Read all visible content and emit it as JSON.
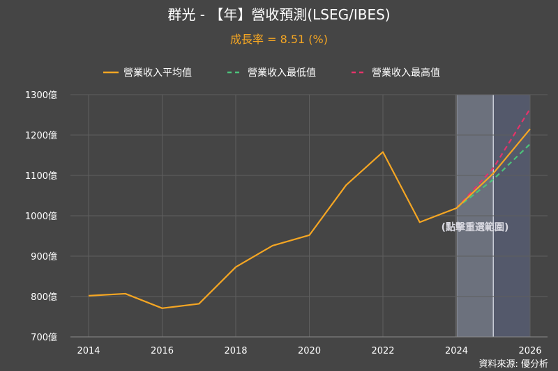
{
  "header": {
    "title": "群光 - 【年】營收預測(LSEG/IBES)",
    "growth_text": "成長率 = 8.51 (%)"
  },
  "legend": [
    {
      "label": "營業收入平均值",
      "color": "#f5a623",
      "style": "solid"
    },
    {
      "label": "營業收入最低值",
      "color": "#4cc27a",
      "style": "dashed"
    },
    {
      "label": "營業收入最高值",
      "color": "#e5336a",
      "style": "dashed"
    }
  ],
  "hint_text": "(點擊重選範圍)",
  "source_text": "資料來源: 優分析",
  "colors": {
    "background": "#454545",
    "grid": "#5e5e5e",
    "growth": "#f5a623",
    "highlight_2024": "#7a8090",
    "highlight_2025": "#5a6078"
  },
  "chart_data": {
    "type": "line",
    "title": "群光 - 【年】營收預測(LSEG/IBES)",
    "subtitle": "成長率 = 8.51 (%)",
    "x_ticks": [
      2014,
      2016,
      2018,
      2020,
      2022,
      2024,
      2026
    ],
    "x_range": [
      2014,
      2026
    ],
    "y_range": [
      700,
      1300
    ],
    "y_ticks": [
      700,
      800,
      900,
      1000,
      1100,
      1200,
      1300
    ],
    "y_tick_labels": [
      "700億",
      "800億",
      "900億",
      "1000億",
      "1100億",
      "1200億",
      "1300億"
    ],
    "grid": true,
    "legend_position": "top",
    "shaded_ranges": [
      [
        2024,
        2025
      ],
      [
        2025,
        2026
      ]
    ],
    "series": [
      {
        "name": "營業收入平均值",
        "x": [
          2014,
          2015,
          2016,
          2017,
          2018,
          2019,
          2020,
          2021,
          2022,
          2023,
          2024,
          2025,
          2026
        ],
        "values": [
          802,
          807,
          771,
          782,
          873,
          926,
          952,
          1076,
          1158,
          984,
          1019,
          1105,
          1215
        ]
      },
      {
        "name": "營業收入最低值",
        "x": [
          2024,
          2025,
          2026
        ],
        "values": [
          1019,
          1090,
          1178
        ]
      },
      {
        "name": "營業收入最高值",
        "x": [
          2024,
          2025,
          2026
        ],
        "values": [
          1019,
          1118,
          1265
        ]
      }
    ]
  }
}
